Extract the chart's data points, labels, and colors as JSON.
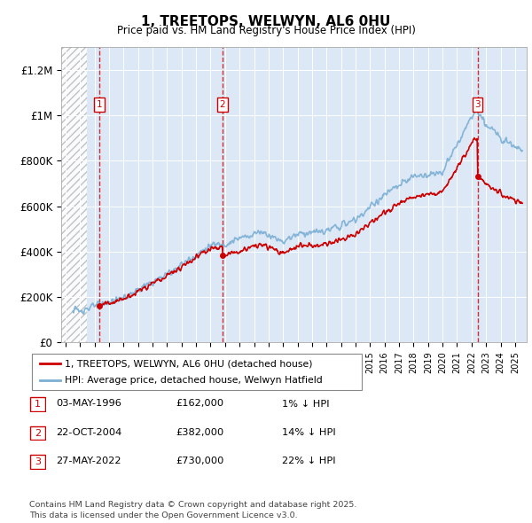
{
  "title": "1, TREETOPS, WELWYN, AL6 0HU",
  "subtitle": "Price paid vs. HM Land Registry's House Price Index (HPI)",
  "ylim": [
    0,
    1300000
  ],
  "yticks": [
    0,
    200000,
    400000,
    600000,
    800000,
    1000000,
    1200000
  ],
  "ytick_labels": [
    "£0",
    "£200K",
    "£400K",
    "£600K",
    "£800K",
    "£1M",
    "£1.2M"
  ],
  "xlim_start": 1993.7,
  "xlim_end": 2025.8,
  "hatch_end": 1995.5,
  "sale_dates": [
    1996.34,
    2004.81,
    2022.41
  ],
  "sale_prices": [
    162000,
    382000,
    730000
  ],
  "sale_labels": [
    "1",
    "2",
    "3"
  ],
  "hpi_color": "#7bafd4",
  "price_color": "#cc0000",
  "dashed_color": "#cc0000",
  "bg_color": "#dce8f5",
  "legend_house": "1, TREETOPS, WELWYN, AL6 0HU (detached house)",
  "legend_hpi": "HPI: Average price, detached house, Welwyn Hatfield",
  "table_rows": [
    [
      "1",
      "03-MAY-1996",
      "£162,000",
      "1% ↓ HPI"
    ],
    [
      "2",
      "22-OCT-2004",
      "£382,000",
      "14% ↓ HPI"
    ],
    [
      "3",
      "27-MAY-2022",
      "£730,000",
      "22% ↓ HPI"
    ]
  ],
  "footnote": "Contains HM Land Registry data © Crown copyright and database right 2025.\nThis data is licensed under the Open Government Licence v3.0."
}
